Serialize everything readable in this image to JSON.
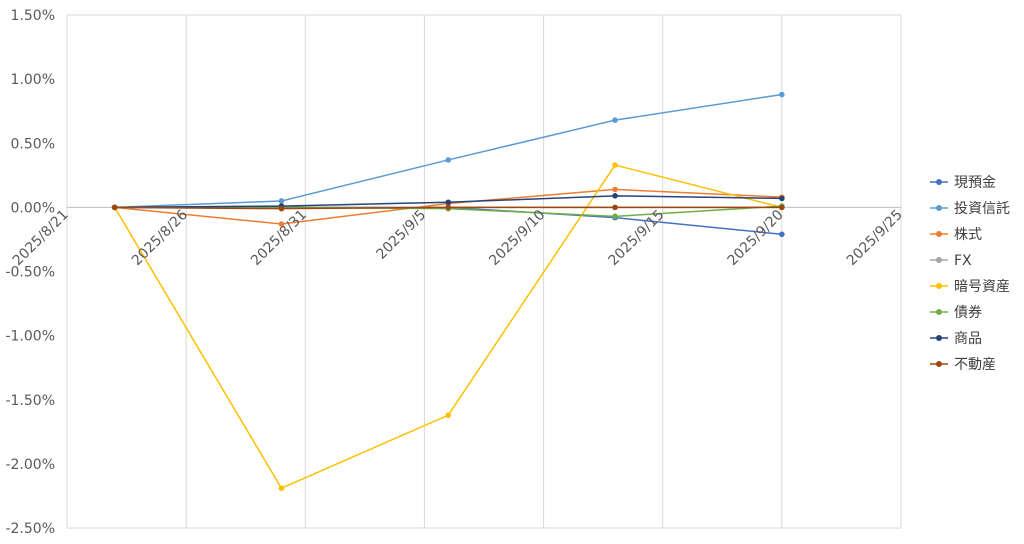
{
  "chart_data": {
    "type": "line",
    "title": "",
    "xlabel": "",
    "ylabel": "",
    "x_ticks": [
      "2025/8/21",
      "2025/8/26",
      "2025/8/31",
      "2025/9/5",
      "2025/9/10",
      "2025/9/15",
      "2025/9/20",
      "2025/9/25"
    ],
    "y_ticks": [
      "1.50%",
      "1.00%",
      "0.50%",
      "0.00%",
      "-0.50%",
      "-1.00%",
      "-1.50%",
      "-2.00%",
      "-2.50%"
    ],
    "xlim": [
      "2025-08-21",
      "2025-09-25"
    ],
    "ylim": [
      -2.5,
      1.5
    ],
    "y_unit": "%",
    "grid": "vertical",
    "legend_position": "right",
    "x": [
      "2025-08-23",
      "2025-08-30",
      "2025-09-06",
      "2025-09-13",
      "2025-09-20"
    ],
    "series": [
      {
        "name": "現預金",
        "color": "#4472C4",
        "values": [
          0.0,
          0.0,
          0.0,
          -0.08,
          -0.21
        ]
      },
      {
        "name": "投資信託",
        "color": "#5B9BD5",
        "values": [
          0.0,
          0.05,
          0.37,
          0.68,
          0.88
        ]
      },
      {
        "name": "株式",
        "color": "#ED7D31",
        "values": [
          0.0,
          -0.13,
          0.03,
          0.14,
          0.08
        ]
      },
      {
        "name": "FX",
        "color": "#A5A5A5",
        "values": [
          0.0,
          0.0,
          0.0,
          0.0,
          0.0
        ]
      },
      {
        "name": "暗号資産",
        "color": "#FFC000",
        "values": [
          0.0,
          -2.19,
          -1.62,
          0.33,
          0.0
        ]
      },
      {
        "name": "債券",
        "color": "#70AD47",
        "values": [
          0.0,
          0.0,
          -0.01,
          -0.07,
          0.01
        ]
      },
      {
        "name": "商品",
        "color": "#264478",
        "values": [
          0.0,
          0.01,
          0.04,
          0.09,
          0.07
        ]
      },
      {
        "name": "不動産",
        "color": "#9E480E",
        "values": [
          0.0,
          -0.01,
          0.0,
          0.0,
          0.0
        ]
      }
    ]
  }
}
